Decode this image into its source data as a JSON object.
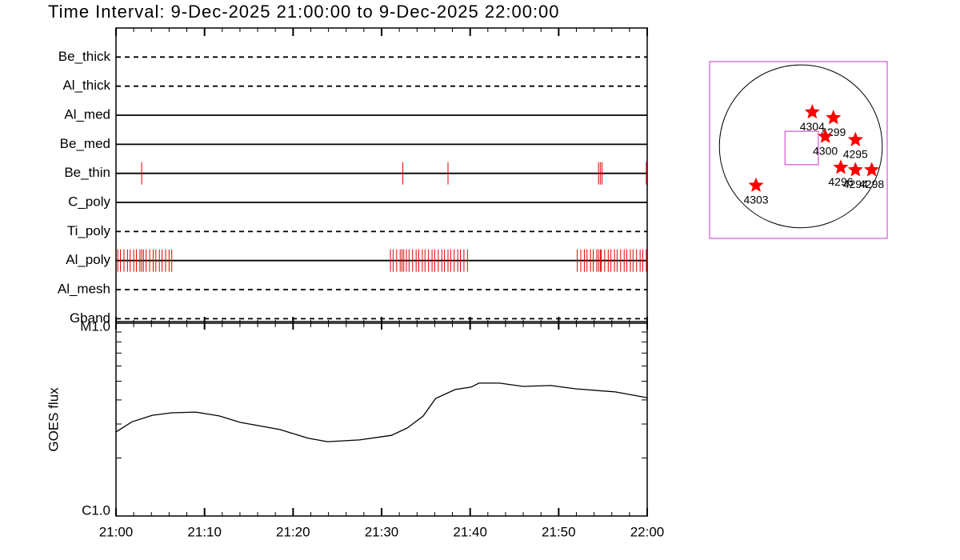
{
  "title": "Time Interval:  9-Dec-2025 21:00:00 to  9-Dec-2025 22:00:00",
  "chart_data": [
    {
      "type": "timeline",
      "xlim": [
        0,
        60
      ],
      "event_color": "#e00000",
      "rows": [
        {
          "name": "Be_thick",
          "line": "dashed",
          "events": []
        },
        {
          "name": "Al_thick",
          "line": "dashed",
          "events": []
        },
        {
          "name": "Al_med",
          "line": "solid",
          "events": []
        },
        {
          "name": "Be_med",
          "line": "solid",
          "events": []
        },
        {
          "name": "Be_thin",
          "line": "solid",
          "events": [
            2.9,
            32.4,
            37.5,
            54.5,
            54.7,
            54.9,
            59.9
          ]
        },
        {
          "name": "C_poly",
          "line": "solid",
          "events": []
        },
        {
          "name": "Ti_poly",
          "line": "dashed",
          "events": []
        },
        {
          "name": "Al_poly",
          "line": "solid",
          "events": [
            0.2,
            0.5,
            0.9,
            1.3,
            1.6,
            2.0,
            2.3,
            2.7,
            2.9,
            3.1,
            3.4,
            3.8,
            4.2,
            4.5,
            4.9,
            5.2,
            5.6,
            6.0,
            6.3,
            31.0,
            31.3,
            31.7,
            32.1,
            32.3,
            32.5,
            32.8,
            33.1,
            33.5,
            33.9,
            34.2,
            34.6,
            34.9,
            35.3,
            35.7,
            36.0,
            36.4,
            36.8,
            37.1,
            37.5,
            37.8,
            38.2,
            38.6,
            38.9,
            39.3,
            39.7,
            52.1,
            52.5,
            52.9,
            53.2,
            53.6,
            53.9,
            54.3,
            54.5,
            54.7,
            54.8,
            55.2,
            55.6,
            55.9,
            56.3,
            56.6,
            57.0,
            57.4,
            57.7,
            58.1,
            58.4,
            58.8,
            59.2,
            59.5,
            59.9
          ]
        },
        {
          "name": "Al_mesh",
          "line": "dashed",
          "events": []
        },
        {
          "name": "Gband",
          "line": "dashed",
          "events": []
        }
      ]
    },
    {
      "type": "line",
      "ylabel": "GOES flux",
      "log_y": true,
      "color": "#000000",
      "xlim": [
        0,
        60
      ],
      "xticks": [
        {
          "value": 0,
          "label": "21:00"
        },
        {
          "value": 10,
          "label": "21:10"
        },
        {
          "value": 20,
          "label": "21:20"
        },
        {
          "value": 30,
          "label": "21:30"
        },
        {
          "value": 40,
          "label": "21:40"
        },
        {
          "value": 50,
          "label": "21:50"
        },
        {
          "value": 60,
          "label": "22:00"
        }
      ],
      "minor_xticks": [
        2,
        4,
        6,
        8,
        12,
        14,
        16,
        18,
        22,
        24,
        26,
        28,
        32,
        34,
        36,
        38,
        42,
        44,
        46,
        48,
        52,
        54,
        56,
        58
      ],
      "ylim": [
        1e-06,
        1e-05
      ],
      "yticks": [
        {
          "value": 1e-06,
          "label": "C1.0"
        },
        {
          "value": 1e-05,
          "label": "M1.0"
        }
      ],
      "minor_yticks": [
        2e-06,
        3e-06,
        4e-06,
        5e-06,
        6e-06,
        7e-06,
        8e-06,
        9e-06
      ],
      "x": [
        0,
        1.8,
        4.1,
        6.3,
        9.0,
        11.7,
        14.0,
        18.5,
        21.7,
        23.9,
        27.5,
        31.1,
        32.9,
        34.7,
        36.1,
        38.3,
        40.1,
        41.0,
        43.3,
        46.0,
        49.1,
        51.9,
        56.4,
        60
      ],
      "values": [
        2.73e-06,
        3.08e-06,
        3.33e-06,
        3.43e-06,
        3.46e-06,
        3.3e-06,
        3.06e-06,
        2.81e-06,
        2.53e-06,
        2.43e-06,
        2.48e-06,
        2.62e-06,
        2.86e-06,
        3.3e-06,
        4.07e-06,
        4.53e-06,
        4.66e-06,
        4.89e-06,
        4.89e-06,
        4.7e-06,
        4.75e-06,
        4.57e-06,
        4.4e-06,
        4.11e-06
      ]
    },
    {
      "type": "scatter",
      "color": "#ff0000",
      "frame_color": "#cc33cc",
      "xlim": [
        -1.12,
        1.06
      ],
      "ylim": [
        -1.13,
        1.04
      ],
      "disk_radius": 1,
      "fov": {
        "x": 0.01,
        "y": -0.02,
        "size": 0.41
      },
      "points": [
        {
          "label": "4304",
          "x": 0.14,
          "y": 0.42
        },
        {
          "label": "4299",
          "x": 0.4,
          "y": 0.35
        },
        {
          "label": "4300",
          "x": 0.3,
          "y": 0.12
        },
        {
          "label": "4295",
          "x": 0.67,
          "y": 0.08
        },
        {
          "label": "4296",
          "x": 0.49,
          "y": -0.26
        },
        {
          "label": "4294",
          "x": 0.67,
          "y": -0.29
        },
        {
          "label": "4298",
          "x": 0.87,
          "y": -0.29
        },
        {
          "label": "4303",
          "x": -0.55,
          "y": -0.48
        }
      ]
    }
  ]
}
